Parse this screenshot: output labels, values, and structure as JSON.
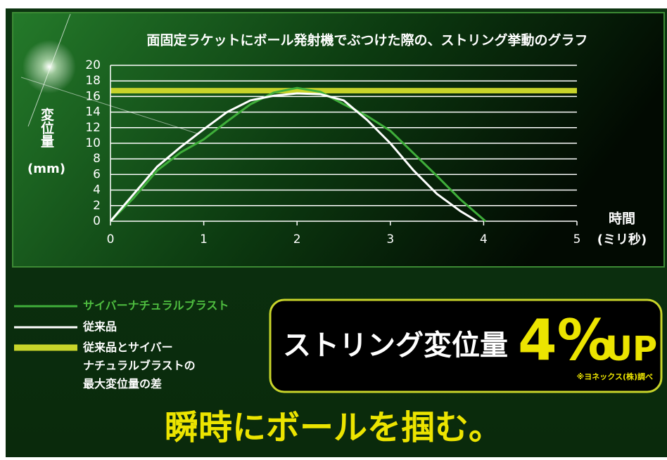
{
  "chart_data": {
    "type": "line",
    "title": "面固定ラケットにボール発射機でぶつけた際の、ストリング挙動のグラフ",
    "ylabel": "変位量",
    "ylabel_unit": "(mm)",
    "xlabel": "時間",
    "xlabel_unit": "(ミリ秒)",
    "xlim": [
      0,
      5
    ],
    "xticks": [
      0,
      1,
      2,
      3,
      4,
      5
    ],
    "ylim": [
      0,
      20
    ],
    "yticks": [
      0,
      2,
      4,
      6,
      8,
      10,
      12,
      14,
      16,
      18,
      20
    ],
    "grid": true,
    "series": [
      {
        "name": "サイバーナチュラルブラスト",
        "color": "#3fae3a",
        "x": [
          0,
          0.25,
          0.5,
          0.75,
          1,
          1.25,
          1.5,
          1.75,
          2,
          2.25,
          2.5,
          2.75,
          3,
          3.25,
          3.5,
          3.75,
          4.02
        ],
        "values": [
          0,
          3,
          6.5,
          8.8,
          10.5,
          12.8,
          15,
          16.5,
          17.1,
          16.6,
          15,
          13.5,
          11.6,
          8.7,
          5.8,
          2.8,
          0
        ]
      },
      {
        "name": "従来品",
        "color": "#ffffff",
        "x": [
          0,
          0.25,
          0.5,
          0.75,
          1,
          1.25,
          1.5,
          1.75,
          2,
          2.25,
          2.5,
          2.75,
          3,
          3.25,
          3.5,
          3.75,
          3.93
        ],
        "values": [
          0,
          3.5,
          7,
          9.5,
          11.8,
          14,
          15.5,
          16.1,
          16.4,
          16.3,
          15.5,
          13,
          10,
          6.5,
          3.5,
          1.3,
          0
        ]
      }
    ],
    "band": {
      "name": "従来品とサイバー\nナチュラルブラストの\n最大変位量の差",
      "color": "#c8d42a",
      "range": [
        16.4,
        17.1
      ]
    },
    "highlight_label": "ストリング変位量",
    "highlight_value": "4%",
    "highlight_suffix": "UP",
    "source_note": "※ヨネックス(株)調べ",
    "headline": "瞬時にボールを掴む。"
  }
}
